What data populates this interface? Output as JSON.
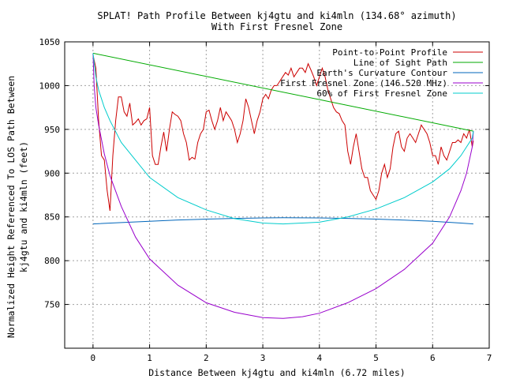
{
  "chart_data": {
    "type": "line",
    "title": "SPLAT! Path Profile Between kj4gtu and ki4mln (134.68° azimuth)",
    "subtitle": "With First Fresnel Zone",
    "xlabel": "Distance Between kj4gtu and ki4mln (6.72 miles)",
    "ylabel_line1": "Normalized Height Referenced To LOS Path Between",
    "ylabel_line2": "kj4gtu and ki4mln (feet)",
    "xlim": [
      -0.5,
      7
    ],
    "ylim": [
      700,
      1050
    ],
    "x_ticks": [
      "0",
      "1",
      "2",
      "3",
      "4",
      "5",
      "6",
      "7"
    ],
    "y_ticks": [
      "750",
      "800",
      "850",
      "900",
      "950",
      "1000",
      "1050"
    ],
    "grid": true,
    "legend": "top-right",
    "series": [
      {
        "name": "Point-to-Point Profile",
        "color": "#cc0000",
        "points": [
          [
            0,
            1035
          ],
          [
            0.05,
            1020
          ],
          [
            0.1,
            960
          ],
          [
            0.15,
            920
          ],
          [
            0.2,
            915
          ],
          [
            0.25,
            880
          ],
          [
            0.3,
            857
          ],
          [
            0.35,
            920
          ],
          [
            0.4,
            960
          ],
          [
            0.45,
            987
          ],
          [
            0.5,
            987
          ],
          [
            0.55,
            970
          ],
          [
            0.6,
            965
          ],
          [
            0.65,
            980
          ],
          [
            0.7,
            955
          ],
          [
            0.75,
            958
          ],
          [
            0.8,
            962
          ],
          [
            0.85,
            955
          ],
          [
            0.9,
            960
          ],
          [
            0.95,
            962
          ],
          [
            1.0,
            975
          ],
          [
            1.05,
            920
          ],
          [
            1.1,
            910
          ],
          [
            1.15,
            910
          ],
          [
            1.2,
            930
          ],
          [
            1.25,
            947
          ],
          [
            1.3,
            925
          ],
          [
            1.35,
            950
          ],
          [
            1.4,
            970
          ],
          [
            1.45,
            967
          ],
          [
            1.5,
            965
          ],
          [
            1.55,
            960
          ],
          [
            1.6,
            945
          ],
          [
            1.65,
            935
          ],
          [
            1.7,
            915
          ],
          [
            1.75,
            918
          ],
          [
            1.8,
            916
          ],
          [
            1.85,
            935
          ],
          [
            1.9,
            945
          ],
          [
            1.95,
            950
          ],
          [
            2.0,
            970
          ],
          [
            2.05,
            972
          ],
          [
            2.1,
            960
          ],
          [
            2.15,
            950
          ],
          [
            2.2,
            960
          ],
          [
            2.25,
            975
          ],
          [
            2.3,
            960
          ],
          [
            2.35,
            970
          ],
          [
            2.4,
            965
          ],
          [
            2.45,
            960
          ],
          [
            2.5,
            950
          ],
          [
            2.55,
            935
          ],
          [
            2.6,
            945
          ],
          [
            2.65,
            960
          ],
          [
            2.7,
            985
          ],
          [
            2.75,
            975
          ],
          [
            2.8,
            960
          ],
          [
            2.85,
            945
          ],
          [
            2.9,
            960
          ],
          [
            2.95,
            970
          ],
          [
            3.0,
            985
          ],
          [
            3.05,
            990
          ],
          [
            3.1,
            985
          ],
          [
            3.15,
            995
          ],
          [
            3.2,
            1000
          ],
          [
            3.25,
            1000
          ],
          [
            3.3,
            1005
          ],
          [
            3.35,
            1010
          ],
          [
            3.4,
            1015
          ],
          [
            3.45,
            1012
          ],
          [
            3.5,
            1020
          ],
          [
            3.55,
            1010
          ],
          [
            3.6,
            1015
          ],
          [
            3.65,
            1020
          ],
          [
            3.7,
            1020
          ],
          [
            3.75,
            1015
          ],
          [
            3.8,
            1025
          ],
          [
            3.85,
            1018
          ],
          [
            3.9,
            1010
          ],
          [
            3.95,
            1000
          ],
          [
            4.0,
            1010
          ],
          [
            4.05,
            1020
          ],
          [
            4.1,
            1010
          ],
          [
            4.15,
            995
          ],
          [
            4.2,
            985
          ],
          [
            4.25,
            975
          ],
          [
            4.3,
            970
          ],
          [
            4.35,
            968
          ],
          [
            4.4,
            960
          ],
          [
            4.45,
            955
          ],
          [
            4.5,
            925
          ],
          [
            4.55,
            910
          ],
          [
            4.6,
            930
          ],
          [
            4.65,
            945
          ],
          [
            4.7,
            925
          ],
          [
            4.75,
            905
          ],
          [
            4.8,
            895
          ],
          [
            4.85,
            895
          ],
          [
            4.9,
            880
          ],
          [
            4.95,
            875
          ],
          [
            5.0,
            870
          ],
          [
            5.05,
            880
          ],
          [
            5.1,
            900
          ],
          [
            5.15,
            910
          ],
          [
            5.2,
            895
          ],
          [
            5.25,
            905
          ],
          [
            5.3,
            930
          ],
          [
            5.35,
            945
          ],
          [
            5.4,
            948
          ],
          [
            5.45,
            930
          ],
          [
            5.5,
            925
          ],
          [
            5.55,
            940
          ],
          [
            5.6,
            945
          ],
          [
            5.65,
            940
          ],
          [
            5.7,
            935
          ],
          [
            5.75,
            945
          ],
          [
            5.8,
            955
          ],
          [
            5.85,
            950
          ],
          [
            5.9,
            945
          ],
          [
            5.95,
            935
          ],
          [
            6.0,
            920
          ],
          [
            6.05,
            920
          ],
          [
            6.1,
            910
          ],
          [
            6.15,
            930
          ],
          [
            6.2,
            920
          ],
          [
            6.25,
            915
          ],
          [
            6.3,
            925
          ],
          [
            6.35,
            935
          ],
          [
            6.4,
            935
          ],
          [
            6.45,
            938
          ],
          [
            6.5,
            935
          ],
          [
            6.55,
            945
          ],
          [
            6.6,
            940
          ],
          [
            6.65,
            950
          ],
          [
            6.7,
            930
          ],
          [
            6.72,
            937
          ]
        ]
      },
      {
        "name": "Line of Sight Path",
        "color": "#00aa00",
        "points": [
          [
            0,
            1037
          ],
          [
            6.72,
            948
          ]
        ]
      },
      {
        "name": "Earth's Curvature Contour",
        "color": "#0066bb",
        "points": [
          [
            0,
            842
          ],
          [
            0.5,
            843.5
          ],
          [
            1,
            845
          ],
          [
            1.5,
            846.5
          ],
          [
            2,
            847.5
          ],
          [
            2.5,
            848.3
          ],
          [
            3,
            848.8
          ],
          [
            3.36,
            849
          ],
          [
            4,
            848.8
          ],
          [
            4.5,
            848.3
          ],
          [
            5,
            847.5
          ],
          [
            5.5,
            846.3
          ],
          [
            6,
            845
          ],
          [
            6.5,
            843
          ],
          [
            6.72,
            842
          ]
        ]
      },
      {
        "name": "First Fresnel Zone (146.520 MHz)",
        "color": "#9900cc",
        "points": [
          [
            0,
            1037
          ],
          [
            0.02,
            1000
          ],
          [
            0.05,
            975
          ],
          [
            0.1,
            955
          ],
          [
            0.2,
            922
          ],
          [
            0.3,
            897
          ],
          [
            0.5,
            862
          ],
          [
            0.75,
            827
          ],
          [
            1,
            802
          ],
          [
            1.5,
            772
          ],
          [
            2,
            752
          ],
          [
            2.5,
            741
          ],
          [
            3,
            735
          ],
          [
            3.36,
            734
          ],
          [
            3.7,
            736
          ],
          [
            4,
            740
          ],
          [
            4.5,
            752
          ],
          [
            5,
            768
          ],
          [
            5.5,
            790
          ],
          [
            6,
            820
          ],
          [
            6.3,
            850
          ],
          [
            6.5,
            880
          ],
          [
            6.6,
            900
          ],
          [
            6.65,
            915
          ],
          [
            6.7,
            930
          ],
          [
            6.72,
            948
          ]
        ]
      },
      {
        "name": "60% of First Fresnel Zone",
        "color": "#00cccc",
        "points": [
          [
            0,
            1037
          ],
          [
            0.05,
            1010
          ],
          [
            0.1,
            995
          ],
          [
            0.2,
            975
          ],
          [
            0.3,
            960
          ],
          [
            0.5,
            935
          ],
          [
            0.75,
            915
          ],
          [
            1,
            895
          ],
          [
            1.5,
            872
          ],
          [
            2,
            858
          ],
          [
            2.5,
            848
          ],
          [
            3,
            843
          ],
          [
            3.36,
            842
          ],
          [
            3.7,
            843
          ],
          [
            4,
            844
          ],
          [
            4.5,
            850
          ],
          [
            5,
            859
          ],
          [
            5.5,
            872
          ],
          [
            6,
            890
          ],
          [
            6.3,
            905
          ],
          [
            6.5,
            920
          ],
          [
            6.6,
            930
          ],
          [
            6.7,
            940
          ],
          [
            6.72,
            948
          ]
        ]
      }
    ]
  }
}
